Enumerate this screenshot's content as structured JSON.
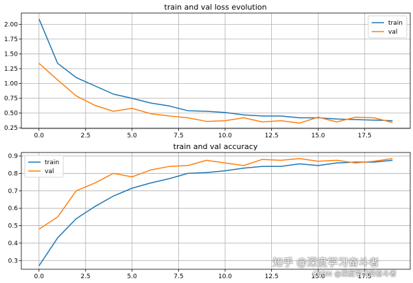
{
  "chart_data": [
    {
      "type": "line",
      "title": "train and val loss evolution",
      "xlabel": "",
      "ylabel": "",
      "xlim": [
        -0.95,
        19.95
      ],
      "ylim": [
        0.24,
        2.19
      ],
      "xticks": [
        0.0,
        2.5,
        5.0,
        7.5,
        10.0,
        12.5,
        15.0,
        17.5
      ],
      "xtick_labels": [
        "0.0",
        "2.5",
        "5.0",
        "7.5",
        "10.0",
        "12.5",
        "15.0",
        "17.5"
      ],
      "yticks": [
        0.25,
        0.5,
        0.75,
        1.0,
        1.25,
        1.5,
        1.75,
        2.0
      ],
      "ytick_labels": [
        "0.25",
        "0.50",
        "0.75",
        "1.00",
        "1.25",
        "1.50",
        "1.75",
        "2.00"
      ],
      "grid": true,
      "legend_position": "top-right",
      "x": [
        0,
        1,
        2,
        3,
        4,
        5,
        6,
        7,
        8,
        9,
        10,
        11,
        12,
        13,
        14,
        15,
        16,
        17,
        18,
        19
      ],
      "series": [
        {
          "name": "train",
          "color": "#1f77b4",
          "values": [
            2.09,
            1.34,
            1.1,
            0.96,
            0.82,
            0.75,
            0.67,
            0.62,
            0.54,
            0.53,
            0.51,
            0.47,
            0.45,
            0.45,
            0.42,
            0.42,
            0.4,
            0.39,
            0.38,
            0.37
          ]
        },
        {
          "name": "val",
          "color": "#ff7f0e",
          "values": [
            1.34,
            1.06,
            0.79,
            0.63,
            0.53,
            0.58,
            0.49,
            0.45,
            0.42,
            0.36,
            0.37,
            0.42,
            0.35,
            0.37,
            0.33,
            0.43,
            0.35,
            0.43,
            0.42,
            0.34
          ]
        }
      ]
    },
    {
      "type": "line",
      "title": "train and val accuracy",
      "xlabel": "",
      "ylabel": "",
      "xlim": [
        -0.95,
        19.95
      ],
      "ylim": [
        0.25,
        0.92
      ],
      "xticks": [
        0.0,
        2.5,
        5.0,
        7.5,
        10.0,
        12.5,
        15.0,
        17.5
      ],
      "xtick_labels": [
        "0.0",
        "2.5",
        "5.0",
        "7.5",
        "10.0",
        "12.5",
        "15.0",
        "17.5"
      ],
      "yticks": [
        0.3,
        0.4,
        0.5,
        0.6,
        0.7,
        0.8,
        0.9
      ],
      "ytick_labels": [
        "0.3",
        "0.4",
        "0.5",
        "0.6",
        "0.7",
        "0.8",
        "0.9"
      ],
      "grid": true,
      "legend_position": "top-left",
      "x": [
        0,
        1,
        2,
        3,
        4,
        5,
        6,
        7,
        8,
        9,
        10,
        11,
        12,
        13,
        14,
        15,
        16,
        17,
        18,
        19
      ],
      "series": [
        {
          "name": "train",
          "color": "#1f77b4",
          "values": [
            0.27,
            0.43,
            0.54,
            0.61,
            0.67,
            0.715,
            0.745,
            0.77,
            0.8,
            0.805,
            0.815,
            0.83,
            0.84,
            0.84,
            0.855,
            0.845,
            0.86,
            0.865,
            0.865,
            0.875
          ]
        },
        {
          "name": "val",
          "color": "#ff7f0e",
          "values": [
            0.48,
            0.55,
            0.7,
            0.745,
            0.8,
            0.78,
            0.82,
            0.84,
            0.845,
            0.875,
            0.86,
            0.845,
            0.88,
            0.875,
            0.885,
            0.87,
            0.875,
            0.86,
            0.87,
            0.885
          ]
        }
      ]
    }
  ],
  "watermark": {
    "main": "知乎 @深度学习奋斗者",
    "sub": "CSDN @深度学习的奋斗者"
  }
}
